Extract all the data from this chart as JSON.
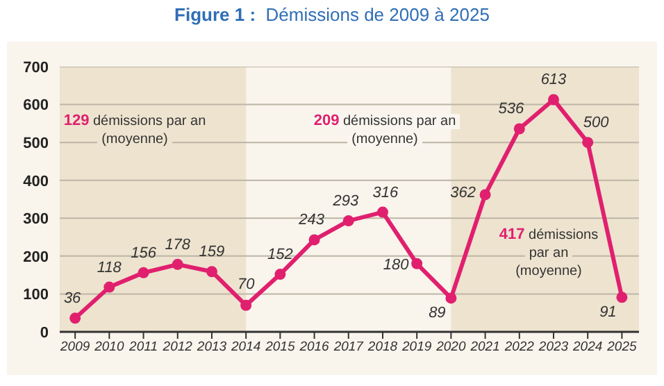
{
  "chart_data": {
    "type": "line",
    "title": "Figure 1 :  Démissions de 2009 à 2025",
    "x": [
      2009,
      2010,
      2011,
      2012,
      2013,
      2014,
      2015,
      2016,
      2017,
      2018,
      2019,
      2020,
      2021,
      2022,
      2023,
      2024,
      2025
    ],
    "series": [
      {
        "color": "#e0206e",
        "values": [
          36,
          118,
          156,
          178,
          159,
          70,
          152,
          243,
          293,
          316,
          180,
          89,
          362,
          536,
          613,
          500,
          91
        ]
      }
    ],
    "xlim": [
      2008.55,
      2025.5
    ],
    "xticks": [
      2009,
      2010,
      2011,
      2012,
      2013,
      2014,
      2015,
      2016,
      2017,
      2018,
      2019,
      2020,
      2021,
      2022,
      2023,
      2024,
      2025
    ],
    "ylim": [
      0,
      700
    ],
    "yticks": [
      0,
      100,
      200,
      300,
      400,
      500,
      600,
      700
    ],
    "bands": [
      {
        "axis": "x",
        "from": 2008.55,
        "to": 2014,
        "color": "#eee3cf"
      },
      {
        "axis": "x",
        "from": 2020,
        "to": 2025.5,
        "color": "#eee3cf"
      }
    ],
    "annotations": [
      "129 démissions par an (moyenne)",
      "209 démissions par an (moyenne)",
      "417 démissions par an (moyenne)"
    ],
    "data_labels": true,
    "grid": "y",
    "marker": "circle",
    "line_style": "solid"
  }
}
